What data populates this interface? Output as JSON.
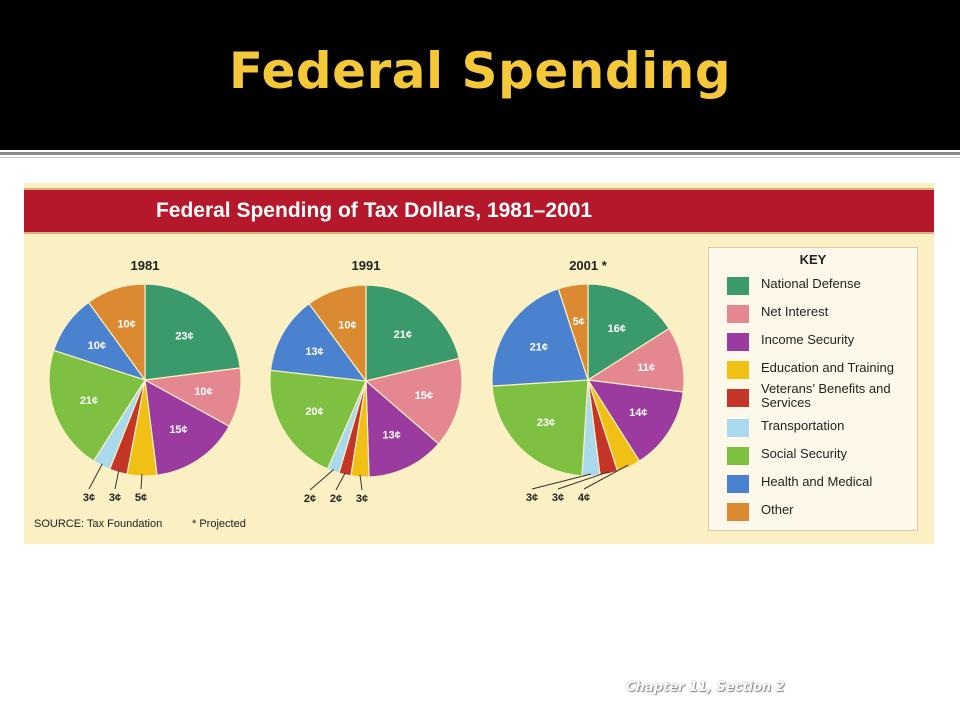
{
  "slide": {
    "title": "Federal Spending",
    "footer": "Chapter 11, Section 2"
  },
  "key": {
    "title": "KEY",
    "items": [
      {
        "label": "National Defense",
        "color": "#3a9a6c"
      },
      {
        "label": "Net Interest",
        "color": "#e58790"
      },
      {
        "label": "Income Security",
        "color": "#9b3b9f"
      },
      {
        "label": "Education and Training",
        "color": "#f0c014"
      },
      {
        "label": "Veterans’ Benefits and Services",
        "color": "#c43527"
      },
      {
        "label": "Transportation",
        "color": "#a9d9ec"
      },
      {
        "label": "Social Security",
        "color": "#7dc042"
      },
      {
        "label": "Health and Medical",
        "color": "#4b82cf"
      },
      {
        "label": "Other",
        "color": "#dc8a31"
      }
    ]
  },
  "chart_data": [
    {
      "type": "pie",
      "title": "Federal Spending of Tax Dollars, 1981–2001",
      "subtitle": "1981",
      "categories": [
        "National Defense",
        "Net Interest",
        "Income Security",
        "Education and Training",
        "Veterans’ Benefits and Services",
        "Transportation",
        "Social Security",
        "Health and Medical",
        "Other"
      ],
      "values": [
        23,
        10,
        15,
        5,
        3,
        3,
        21,
        10,
        10
      ],
      "labels": [
        "23¢",
        "10¢",
        "15¢",
        "5¢",
        "3¢",
        "3¢",
        "21¢",
        "10¢",
        "10¢"
      ]
    },
    {
      "type": "pie",
      "subtitle": "1991",
      "categories": [
        "National Defense",
        "Net Interest",
        "Income Security",
        "Education and Training",
        "Veterans’ Benefits and Services",
        "Transportation",
        "Social Security",
        "Health and Medical",
        "Other"
      ],
      "values": [
        21,
        15,
        13,
        3,
        2,
        2,
        20,
        13,
        10
      ],
      "labels": [
        "21¢",
        "15¢",
        "13¢",
        "3¢",
        "2¢",
        "2¢",
        "20¢",
        "13¢",
        "10¢"
      ]
    },
    {
      "type": "pie",
      "subtitle": "2001 *",
      "categories": [
        "National Defense",
        "Net Interest",
        "Income Security",
        "Education and Training",
        "Veterans’ Benefits and Services",
        "Transportation",
        "Social Security",
        "Health and Medical",
        "Other"
      ],
      "values": [
        16,
        11,
        14,
        4,
        3,
        3,
        23,
        21,
        5
      ],
      "labels": [
        "16¢",
        "11¢",
        "14¢",
        "4¢",
        "3¢",
        "3¢",
        "23¢",
        "21¢",
        "5¢"
      ]
    }
  ],
  "figure": {
    "source": "SOURCE: Tax Foundation",
    "note": "* Projected"
  }
}
